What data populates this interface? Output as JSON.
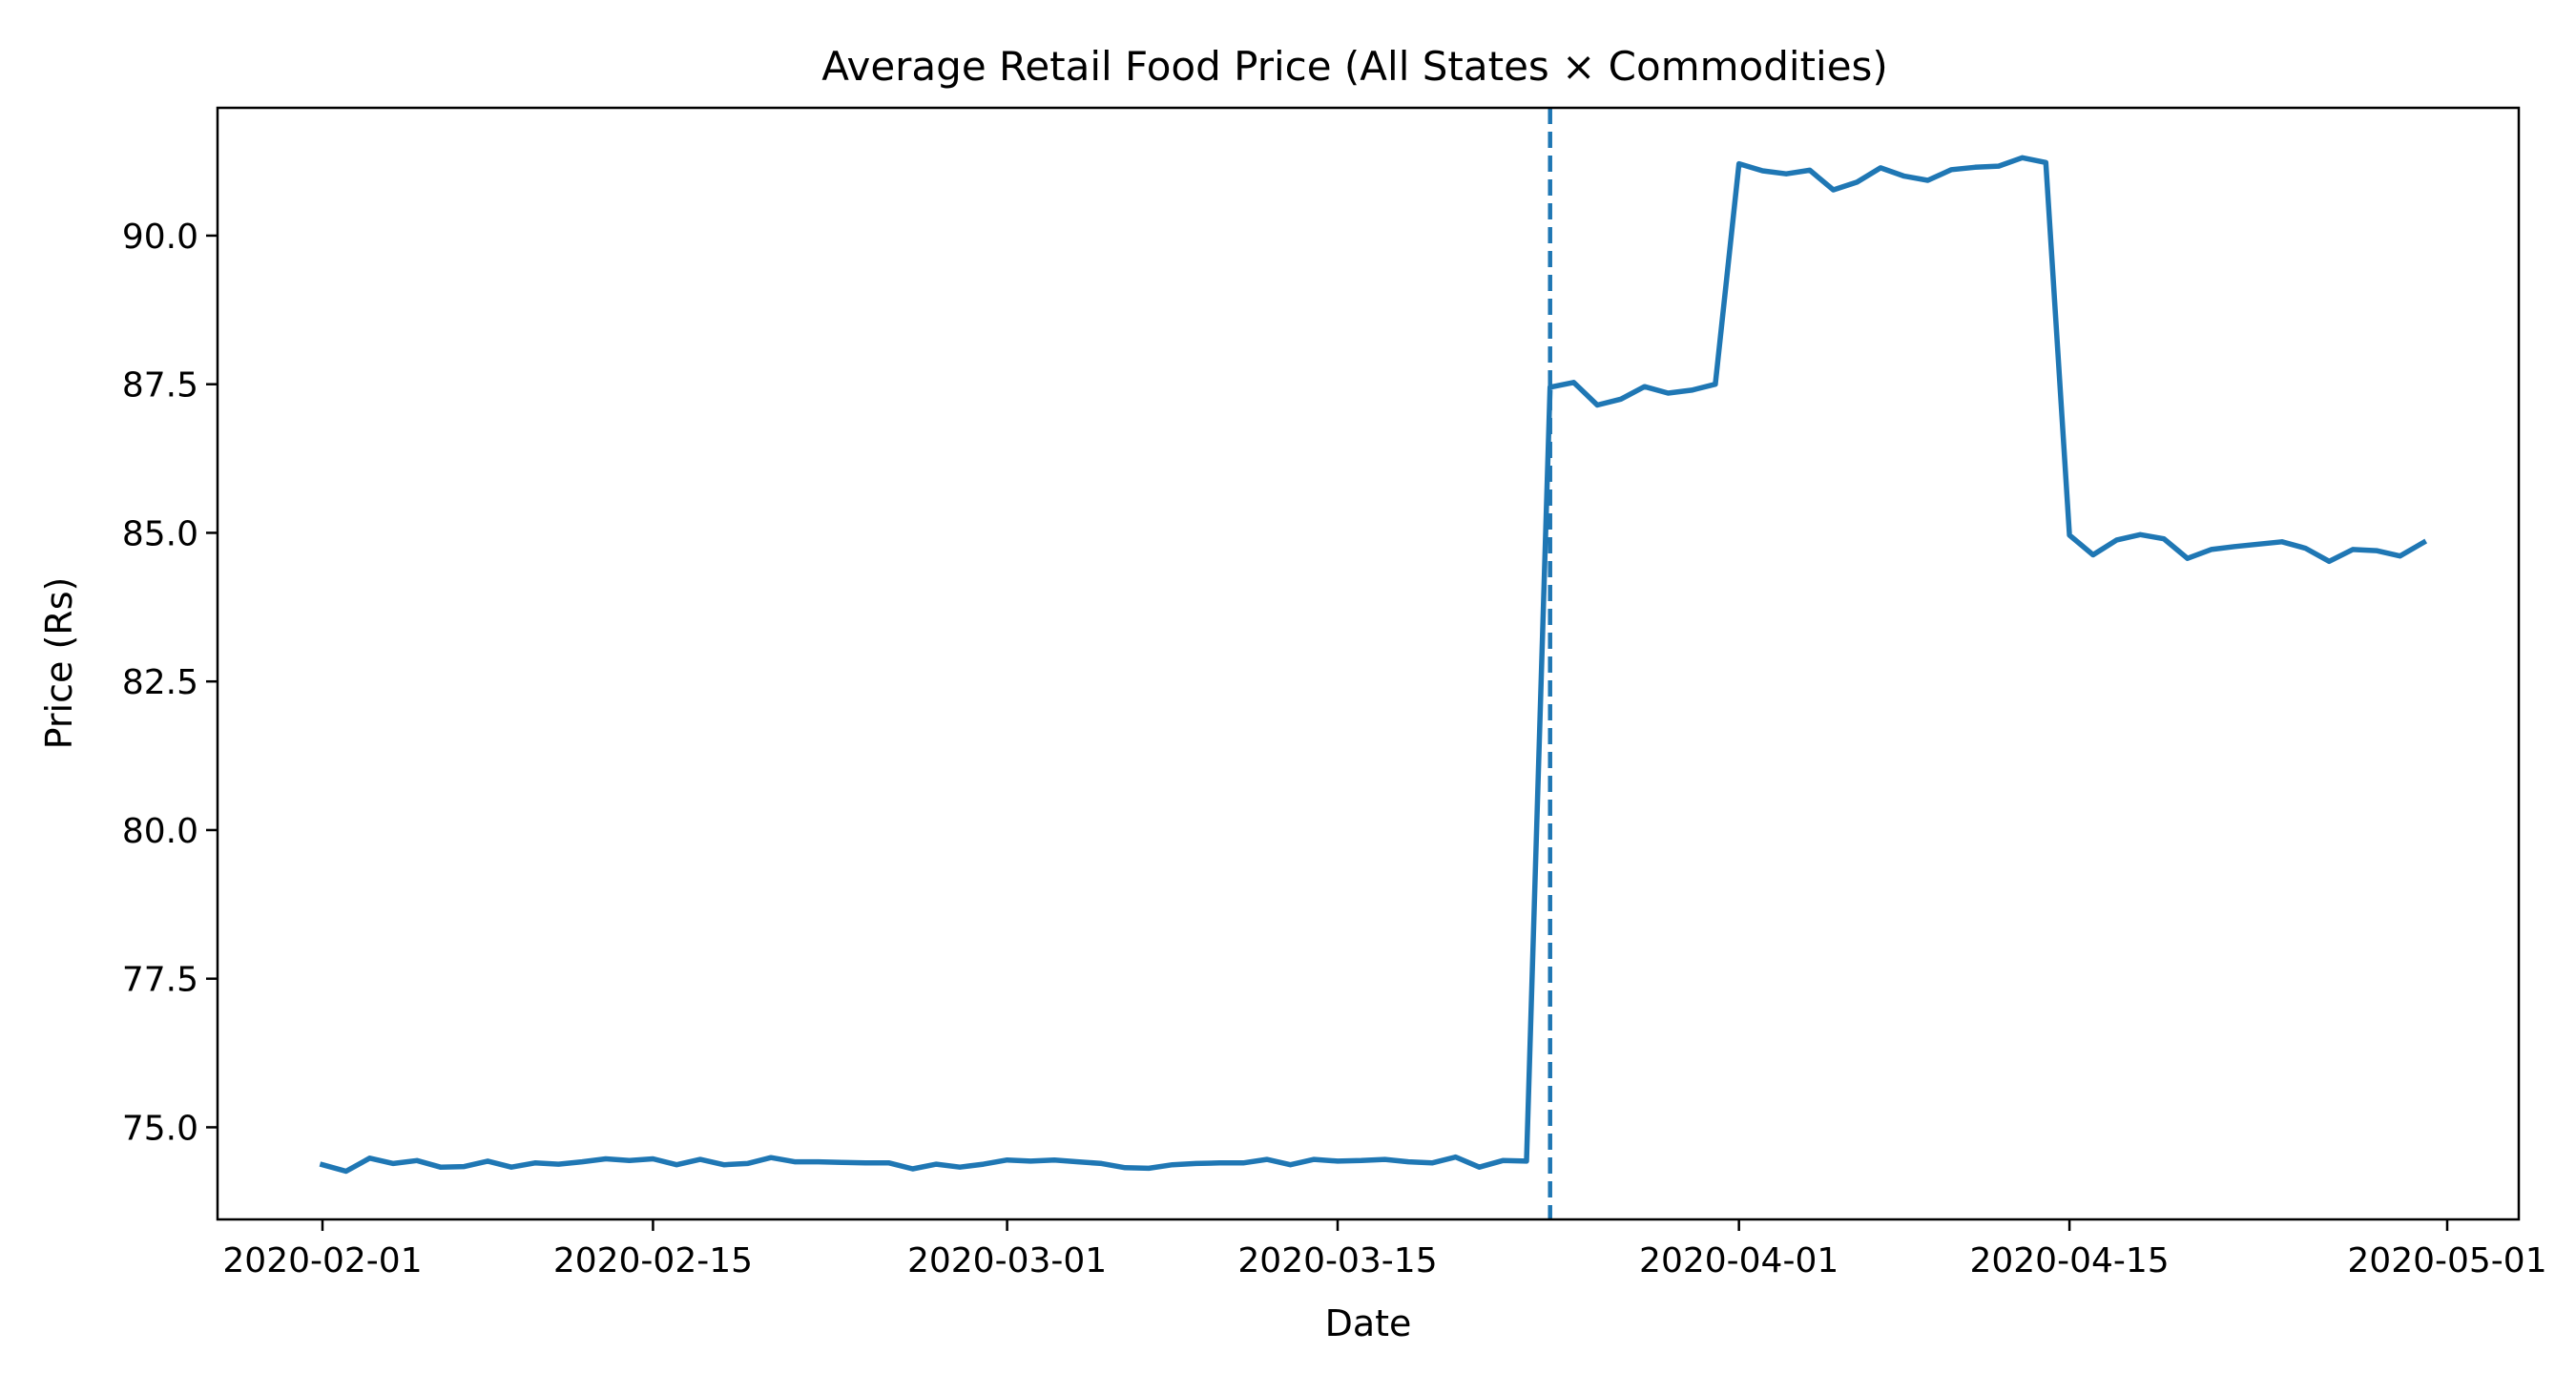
{
  "chart_data": {
    "type": "line",
    "title": "Average Retail Food Price (All States × Commodities)",
    "xlabel": "Date",
    "ylabel": "Price (Rs)",
    "x_ticks": [
      "2020-02-01",
      "2020-02-15",
      "2020-03-01",
      "2020-03-15",
      "2020-04-01",
      "2020-04-15",
      "2020-05-01"
    ],
    "y_ticks": [
      "75.0",
      "77.5",
      "80.0",
      "82.5",
      "85.0",
      "87.5",
      "90.0"
    ],
    "xlim": [
      "2019-01-27",
      "2020-05-04"
    ],
    "ylim": [
      73.45,
      92.15
    ],
    "grid": false,
    "legend": false,
    "colors": {
      "line": "#1f77b4",
      "vline": "#1f77b4",
      "axes": "#000000"
    },
    "vline": {
      "x": "2020-03-24",
      "style": "dashed"
    },
    "series": [
      {
        "x": [
          "2020-02-01",
          "2020-02-02",
          "2020-02-03",
          "2020-02-04",
          "2020-02-05",
          "2020-02-06",
          "2020-02-07",
          "2020-02-08",
          "2020-02-09",
          "2020-02-10",
          "2020-02-11",
          "2020-02-12",
          "2020-02-13",
          "2020-02-14",
          "2020-02-15",
          "2020-02-16",
          "2020-02-17",
          "2020-02-18",
          "2020-02-19",
          "2020-02-20",
          "2020-02-21",
          "2020-02-22",
          "2020-02-23",
          "2020-02-24",
          "2020-02-25",
          "2020-02-26",
          "2020-02-27",
          "2020-02-28",
          "2020-02-29",
          "2020-03-01",
          "2020-03-02",
          "2020-03-03",
          "2020-03-04",
          "2020-03-05",
          "2020-03-06",
          "2020-03-07",
          "2020-03-08",
          "2020-03-09",
          "2020-03-10",
          "2020-03-11",
          "2020-03-12",
          "2020-03-13",
          "2020-03-14",
          "2020-03-15",
          "2020-03-16",
          "2020-03-17",
          "2020-03-18",
          "2020-03-19",
          "2020-03-20",
          "2020-03-21",
          "2020-03-22",
          "2020-03-23",
          "2020-03-24",
          "2020-03-25",
          "2020-03-26",
          "2020-03-27",
          "2020-03-28",
          "2020-03-29",
          "2020-03-30",
          "2020-03-31",
          "2020-04-01",
          "2020-04-02",
          "2020-04-03",
          "2020-04-04",
          "2020-04-05",
          "2020-04-06",
          "2020-04-07",
          "2020-04-08",
          "2020-04-09",
          "2020-04-10",
          "2020-04-11",
          "2020-04-12",
          "2020-04-13",
          "2020-04-14",
          "2020-04-15",
          "2020-04-16",
          "2020-04-17",
          "2020-04-18",
          "2020-04-19",
          "2020-04-20",
          "2020-04-21",
          "2020-04-22",
          "2020-04-23",
          "2020-04-24",
          "2020-04-25",
          "2020-04-26",
          "2020-04-27",
          "2020-04-28",
          "2020-04-29",
          "2020-04-30"
        ],
        "y": [
          74.37,
          74.26,
          74.48,
          74.39,
          74.44,
          74.33,
          74.34,
          74.43,
          74.33,
          74.4,
          74.38,
          74.42,
          74.47,
          74.44,
          74.47,
          74.37,
          74.46,
          74.37,
          74.39,
          74.49,
          74.42,
          74.42,
          74.41,
          74.4,
          74.4,
          74.3,
          74.38,
          74.33,
          74.38,
          74.45,
          74.43,
          74.45,
          74.42,
          74.39,
          74.32,
          74.31,
          74.37,
          74.39,
          74.4,
          74.4,
          74.46,
          74.37,
          74.46,
          74.43,
          74.44,
          74.46,
          74.42,
          74.4,
          74.5,
          74.33,
          74.44,
          74.43,
          87.45,
          87.53,
          87.15,
          87.25,
          87.46,
          87.35,
          87.4,
          87.5,
          91.21,
          91.09,
          91.04,
          91.1,
          90.77,
          90.9,
          91.14,
          91.0,
          90.93,
          91.11,
          91.15,
          91.17,
          91.31,
          91.23,
          84.96,
          84.63,
          84.88,
          84.97,
          84.9,
          84.57,
          84.72,
          84.77,
          84.81,
          84.85,
          84.74,
          84.52,
          84.72,
          84.7,
          84.61,
          84.84
        ]
      }
    ]
  }
}
